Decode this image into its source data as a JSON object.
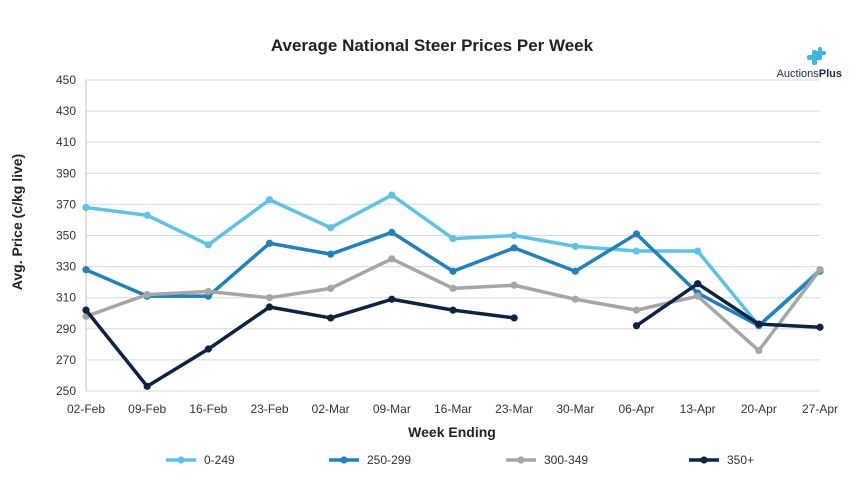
{
  "logo": {
    "text_regular": "Auctions",
    "text_bold": "Plus",
    "color": "#3fb6e0"
  },
  "chart_data": {
    "type": "line",
    "title": "Average National Steer Prices Per Week",
    "xlabel": "Week Ending",
    "ylabel": "Avg. Price (c/kg live)",
    "ylim": [
      250,
      450
    ],
    "yticks": [
      250,
      270,
      290,
      310,
      330,
      350,
      370,
      390,
      410,
      430,
      450
    ],
    "grid": true,
    "legend_position": "bottom",
    "categories": [
      "02-Feb",
      "09-Feb",
      "16-Feb",
      "23-Feb",
      "02-Mar",
      "09-Mar",
      "16-Mar",
      "23-Mar",
      "30-Mar",
      "06-Apr",
      "13-Apr",
      "20-Apr",
      "27-Apr"
    ],
    "series": [
      {
        "name": "0-249",
        "color": "#5cc3e8",
        "values": [
          368,
          363,
          344,
          373,
          355,
          376,
          348,
          350,
          343,
          340,
          340,
          292,
          328
        ]
      },
      {
        "name": "250-299",
        "color": "#1f82be",
        "values": [
          328,
          311,
          311,
          345,
          338,
          352,
          327,
          342,
          327,
          351,
          313,
          292,
          327
        ]
      },
      {
        "name": "300-349",
        "color": "#a6a6a6",
        "values": [
          298,
          312,
          314,
          310,
          316,
          335,
          316,
          318,
          309,
          302,
          311,
          276,
          328
        ]
      },
      {
        "name": "350+",
        "color": "#0d2342",
        "values": [
          302,
          253,
          277,
          304,
          297,
          309,
          302,
          297,
          null,
          292,
          319,
          293,
          291
        ]
      }
    ]
  }
}
